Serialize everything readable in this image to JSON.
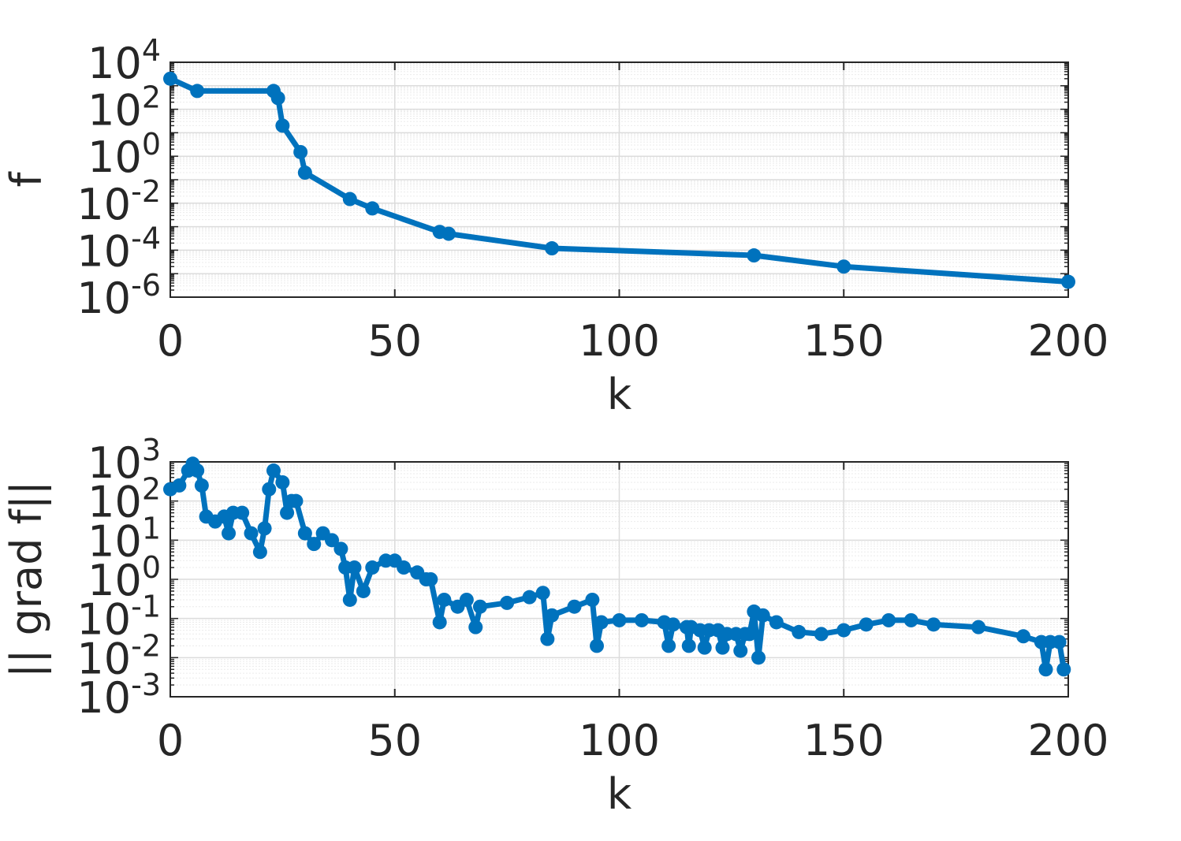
{
  "chart_data": [
    {
      "type": "line",
      "xlabel": "k",
      "ylabel": "f",
      "xlim": [
        0,
        200
      ],
      "ylim": [
        1e-06,
        10000.0
      ],
      "yscale": "log",
      "grid": true,
      "xticks": [
        "0",
        "50",
        "100",
        "150",
        "200"
      ],
      "yticks": [
        {
          "base": "10",
          "exp": "4"
        },
        {
          "base": "10",
          "exp": "2"
        },
        {
          "base": "10",
          "exp": "0"
        },
        {
          "base": "10",
          "exp": "-2"
        },
        {
          "base": "10",
          "exp": "-4"
        },
        {
          "base": "10",
          "exp": "-6"
        }
      ],
      "color": "#0072BD",
      "points": [
        [
          0,
          2000
        ],
        [
          6,
          600
        ],
        [
          23,
          600
        ],
        [
          24,
          300
        ],
        [
          25,
          20
        ],
        [
          29,
          1.5
        ],
        [
          30,
          0.2
        ],
        [
          40,
          0.015
        ],
        [
          45,
          0.006
        ],
        [
          60,
          0.0006
        ],
        [
          62,
          0.0005
        ],
        [
          85,
          0.00012
        ],
        [
          130,
          6e-05
        ],
        [
          150,
          2e-05
        ],
        [
          200,
          4.5e-06
        ]
      ]
    },
    {
      "type": "line",
      "xlabel": "k",
      "ylabel": "|| grad f||",
      "xlim": [
        0,
        200
      ],
      "ylim": [
        0.001,
        1000.0
      ],
      "yscale": "log",
      "grid": true,
      "xticks": [
        "0",
        "50",
        "100",
        "150",
        "200"
      ],
      "yticks": [
        {
          "base": "10",
          "exp": "3"
        },
        {
          "base": "10",
          "exp": "2"
        },
        {
          "base": "10",
          "exp": "1"
        },
        {
          "base": "10",
          "exp": "0"
        },
        {
          "base": "10",
          "exp": "-1"
        },
        {
          "base": "10",
          "exp": "-2"
        },
        {
          "base": "10",
          "exp": "-3"
        }
      ],
      "color": "#0072BD",
      "points": [
        [
          0,
          200
        ],
        [
          2,
          250
        ],
        [
          4,
          600
        ],
        [
          5,
          900
        ],
        [
          6,
          600
        ],
        [
          7,
          250
        ],
        [
          8,
          40
        ],
        [
          10,
          30
        ],
        [
          12,
          40
        ],
        [
          13,
          15
        ],
        [
          14,
          50
        ],
        [
          16,
          50
        ],
        [
          18,
          15
        ],
        [
          20,
          5
        ],
        [
          21,
          20
        ],
        [
          22,
          200
        ],
        [
          23,
          600
        ],
        [
          25,
          300
        ],
        [
          26,
          50
        ],
        [
          27,
          100
        ],
        [
          28,
          100
        ],
        [
          30,
          15
        ],
        [
          32,
          8
        ],
        [
          34,
          15
        ],
        [
          36,
          10
        ],
        [
          38,
          6
        ],
        [
          39,
          2
        ],
        [
          40,
          0.3
        ],
        [
          41,
          2
        ],
        [
          43,
          0.5
        ],
        [
          45,
          2
        ],
        [
          48,
          3
        ],
        [
          50,
          3
        ],
        [
          52,
          2
        ],
        [
          55,
          1.5
        ],
        [
          57,
          1
        ],
        [
          58,
          1
        ],
        [
          60,
          0.08
        ],
        [
          61,
          0.3
        ],
        [
          64,
          0.2
        ],
        [
          66,
          0.3
        ],
        [
          68,
          0.06
        ],
        [
          69,
          0.2
        ],
        [
          75,
          0.25
        ],
        [
          80,
          0.35
        ],
        [
          83,
          0.45
        ],
        [
          84,
          0.03
        ],
        [
          85,
          0.12
        ],
        [
          90,
          0.2
        ],
        [
          94,
          0.3
        ],
        [
          95,
          0.02
        ],
        [
          96,
          0.08
        ],
        [
          100,
          0.09
        ],
        [
          105,
          0.09
        ],
        [
          110,
          0.08
        ],
        [
          111,
          0.02
        ],
        [
          112,
          0.07
        ],
        [
          115,
          0.06
        ],
        [
          115.5,
          0.02
        ],
        [
          116,
          0.06
        ],
        [
          118,
          0.05
        ],
        [
          119,
          0.018
        ],
        [
          120,
          0.05
        ],
        [
          122,
          0.05
        ],
        [
          123,
          0.018
        ],
        [
          124,
          0.04
        ],
        [
          126,
          0.04
        ],
        [
          127,
          0.015
        ],
        [
          128,
          0.04
        ],
        [
          129,
          0.04
        ],
        [
          130,
          0.15
        ],
        [
          131,
          0.01
        ],
        [
          132,
          0.12
        ],
        [
          135,
          0.08
        ],
        [
          140,
          0.045
        ],
        [
          145,
          0.04
        ],
        [
          150,
          0.05
        ],
        [
          155,
          0.07
        ],
        [
          160,
          0.09
        ],
        [
          165,
          0.09
        ],
        [
          170,
          0.07
        ],
        [
          180,
          0.06
        ],
        [
          190,
          0.035
        ],
        [
          194,
          0.025
        ],
        [
          195,
          0.005
        ],
        [
          196,
          0.025
        ],
        [
          198,
          0.025
        ],
        [
          199,
          0.005
        ]
      ]
    }
  ]
}
